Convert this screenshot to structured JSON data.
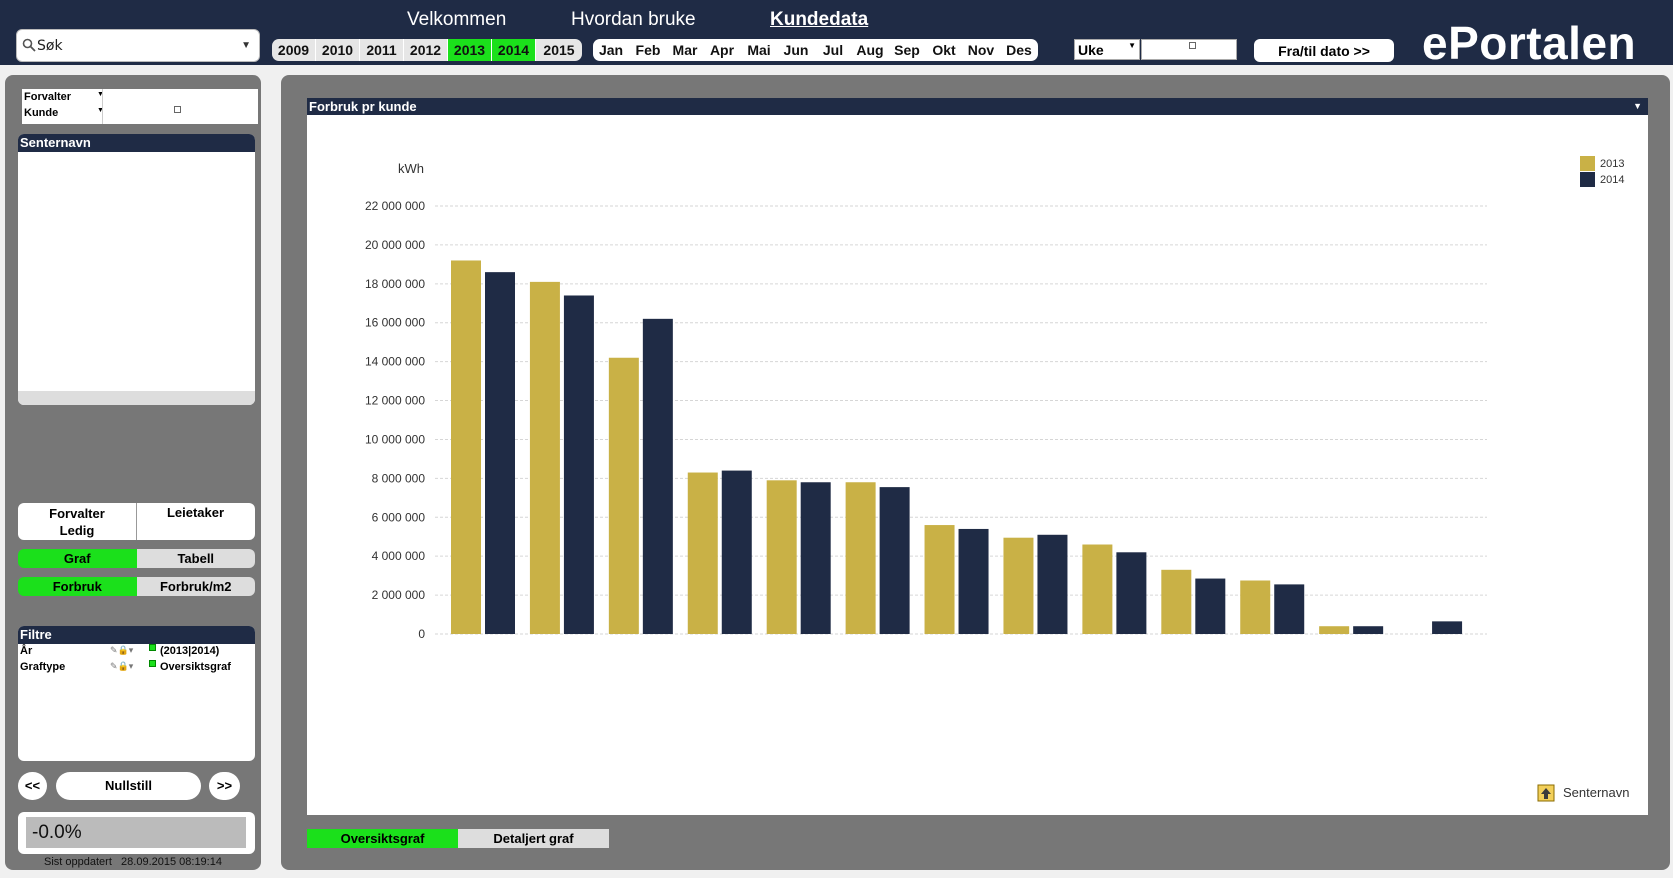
{
  "search": {
    "label": "Søk"
  },
  "nav": {
    "items": [
      "Velkommen",
      "Hvordan bruke",
      "Kundedata"
    ],
    "active": "Kundedata"
  },
  "years": {
    "items": [
      "2009",
      "2010",
      "2011",
      "2012",
      "2013",
      "2014",
      "2015"
    ],
    "selected": [
      "2013",
      "2014"
    ]
  },
  "months": {
    "items": [
      "Jan",
      "Feb",
      "Mar",
      "Apr",
      "Mai",
      "Jun",
      "Jul",
      "Aug",
      "Sep",
      "Okt",
      "Nov",
      "Des"
    ]
  },
  "week": {
    "label": "Uke"
  },
  "date_button": "Fra/til dato  >>",
  "logo": "ePortalen",
  "left": {
    "fields": [
      "Forvalter",
      "Kunde"
    ],
    "senternavn_header": "Senternavn",
    "role_a": "Forvalter\nLedig",
    "role_b": "Leietaker",
    "view_toggle": [
      "Graf",
      "Tabell"
    ],
    "metric_toggle": [
      "Forbruk",
      "Forbruk/m2"
    ],
    "filters_header": "Filtre",
    "filters": [
      {
        "name": "År",
        "value": "(2013|2014)"
      },
      {
        "name": "Graftype",
        "value": "Oversiktsgraf"
      }
    ],
    "prev": "<<",
    "reset": "Nullstill",
    "next": ">>",
    "percent": "-0.0%",
    "updated": "Sist oppdatert   28.09.2015 08:19:14"
  },
  "chart_title": "Forbruk pr kunde",
  "chart_footer": "Senternavn",
  "tabs": [
    "Oversiktsgraf",
    "Detaljert graf"
  ],
  "colors": {
    "navy": "#1f2b45",
    "green": "#1be01b",
    "gold": "#c9b146"
  },
  "chart_data": {
    "type": "bar",
    "title": "Forbruk pr kunde",
    "ylabel": "kWh",
    "xlabel": "Senternavn",
    "ylim": [
      0,
      22000000
    ],
    "ytick_step": 2000000,
    "categories": [
      "",
      "",
      "",
      "",
      "",
      "",
      "",
      "",
      "",
      "",
      "",
      "",
      ""
    ],
    "series": [
      {
        "name": "2013",
        "color": "#c9b146",
        "values": [
          19200000,
          18100000,
          14200000,
          8300000,
          7900000,
          7800000,
          5600000,
          4950000,
          4600000,
          3300000,
          2750000,
          400000,
          0
        ]
      },
      {
        "name": "2014",
        "color": "#1f2b45",
        "values": [
          18600000,
          17400000,
          16200000,
          8400000,
          7800000,
          7550000,
          5400000,
          5100000,
          4200000,
          2850000,
          2550000,
          400000,
          650000
        ]
      }
    ],
    "grid": true,
    "legend": "top-right"
  }
}
